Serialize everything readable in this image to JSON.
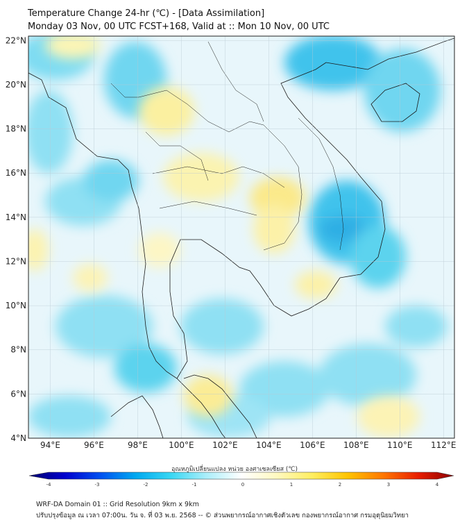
{
  "header": {
    "title_line1": "Temperature Change 24-hr (℃) - [Data Assimilation]",
    "title_line2": "Monday 03 Nov, 00 UTC FCST+168, Valid at :: Mon 10 Nov, 00 UTC"
  },
  "map": {
    "lat_labels": [
      "22°N",
      "20°N",
      "18°N",
      "16°N",
      "14°N",
      "12°N",
      "10°N",
      "8°N",
      "6°N",
      "4°N"
    ],
    "lon_labels": [
      "94°E",
      "96°E",
      "98°E",
      "100°E",
      "102°E",
      "104°E",
      "106°E",
      "108°E",
      "110°E",
      "112°E"
    ],
    "lon_range": [
      93,
      112.5
    ],
    "lat_range": [
      4,
      22.2
    ],
    "colors": {
      "ocean_base": "#e8f6fb",
      "warm": "#fbf3a8",
      "cool": "#5cd3ee",
      "deep_cool": "#2eaee4",
      "border": "#1a1a1a"
    }
  },
  "colorbar": {
    "title": "อุณหภูมิเปลี่ยนแปลง หน่วย องศาเซลเซียส (℃)",
    "ticks": [
      "-4",
      "-3",
      "-2",
      "-1",
      "0",
      "1",
      "2",
      "3",
      "4"
    ],
    "min": -4,
    "max": 4,
    "stops": [
      "#00006e",
      "#0000cd",
      "#0050f0",
      "#00a8f0",
      "#38d7f3",
      "#aaeefa",
      "#ffffff",
      "#fff9c0",
      "#ffee60",
      "#ffc400",
      "#ff7700",
      "#e81e00",
      "#8b0000"
    ]
  },
  "footer": {
    "line1": "WRF-DA Domain 01 :: Grid Resolution 9km x 9km",
    "line2": "ปรับปรุงข้อมูล ณ เวลา 07:00น. วัน จ. ที่ 03 พ.ย. 2568 -- © ส่วนพยากรณ์อากาศเชิงตัวเลข กองพยากรณ์อากาศ กรมอุตุนิยมวิทยา"
  }
}
